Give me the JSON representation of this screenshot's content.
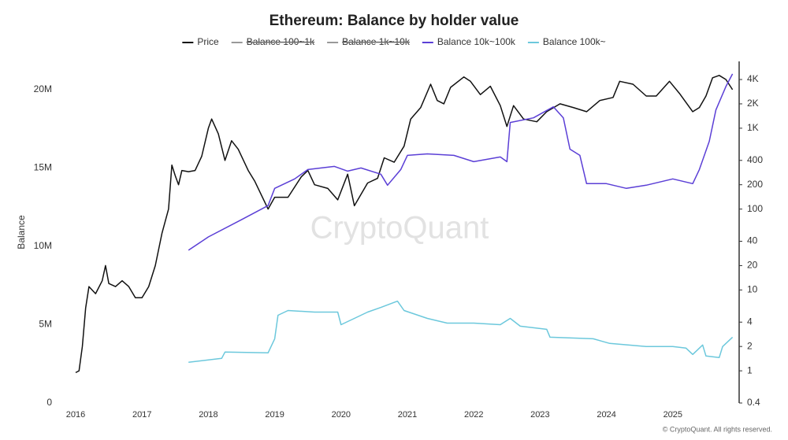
{
  "chart_data": {
    "type": "line",
    "title": "Ethereum: Balance by holder value",
    "ylabel": "Balance",
    "watermark": "CryptoQuant",
    "source": "© CryptoQuant. All rights reserved.",
    "xlim": [
      2015.75,
      2026.0
    ],
    "xticks": [
      2016,
      2017,
      2018,
      2019,
      2020,
      2021,
      2022,
      2023,
      2024,
      2025
    ],
    "ylim": [
      0,
      21800000
    ],
    "yticks": [
      {
        "value": 0,
        "label": "0"
      },
      {
        "value": 5000000,
        "label": "5M"
      },
      {
        "value": 10000000,
        "label": "10M"
      },
      {
        "value": 15000000,
        "label": "15M"
      },
      {
        "value": 20000000,
        "label": "20M"
      }
    ],
    "y2log": true,
    "y2lim": [
      0.4,
      6700
    ],
    "y2ticks": [
      {
        "value": 0.4,
        "label": "0.4"
      },
      1,
      2,
      4,
      10,
      20,
      40,
      100,
      200,
      400,
      {
        "value": 1000,
        "label": "1K"
      },
      {
        "value": 2000,
        "label": "2K"
      },
      {
        "value": 4000,
        "label": "4K"
      }
    ],
    "series": [
      {
        "name": "Price",
        "color": "#111111",
        "axis": "y2",
        "x": [
          2016.0,
          2016.05,
          2016.1,
          2016.15,
          2016.2,
          2016.3,
          2016.4,
          2016.45,
          2016.5,
          2016.6,
          2016.7,
          2016.8,
          2016.9,
          2017.0,
          2017.1,
          2017.2,
          2017.3,
          2017.4,
          2017.45,
          2017.5,
          2017.55,
          2017.6,
          2017.7,
          2017.8,
          2017.9,
          2018.0,
          2018.05,
          2018.15,
          2018.25,
          2018.35,
          2018.45,
          2018.6,
          2018.7,
          2018.9,
          2019.0,
          2019.2,
          2019.4,
          2019.5,
          2019.6,
          2019.8,
          2019.95,
          2020.1,
          2020.2,
          2020.4,
          2020.55,
          2020.65,
          2020.8,
          2020.95,
          2021.05,
          2021.2,
          2021.35,
          2021.45,
          2021.55,
          2021.65,
          2021.85,
          2021.95,
          2022.1,
          2022.25,
          2022.4,
          2022.5,
          2022.6,
          2022.75,
          2022.95,
          2023.1,
          2023.3,
          2023.5,
          2023.7,
          2023.9,
          2024.1,
          2024.2,
          2024.4,
          2024.6,
          2024.75,
          2024.95,
          2025.1,
          2025.3,
          2025.4,
          2025.5,
          2025.6,
          2025.7,
          2025.8,
          2025.9
        ],
        "values": [
          0.95,
          1.0,
          2,
          6,
          11,
          9,
          13,
          20,
          12,
          11,
          13,
          11,
          8,
          8,
          11,
          20,
          50,
          100,
          350,
          260,
          200,
          300,
          290,
          300,
          450,
          1000,
          1300,
          850,
          400,
          700,
          550,
          300,
          220,
          100,
          140,
          140,
          250,
          300,
          200,
          180,
          130,
          270,
          110,
          210,
          240,
          430,
          380,
          600,
          1300,
          1800,
          3500,
          2200,
          2000,
          3200,
          4300,
          3800,
          2600,
          3300,
          1900,
          1050,
          1900,
          1300,
          1200,
          1600,
          2000,
          1800,
          1600,
          2200,
          2400,
          3800,
          3500,
          2500,
          2500,
          3800,
          2700,
          1600,
          1800,
          2500,
          4200,
          4500,
          4000,
          3000
        ]
      },
      {
        "name": "Balance 100~1k",
        "color": "#999999",
        "hidden": true
      },
      {
        "name": "Balance 1k~10k",
        "color": "#999999",
        "hidden": true
      },
      {
        "name": "Balance 10k~100k",
        "color": "#5b3fd6",
        "x": [
          2017.7,
          2018.0,
          2018.5,
          2018.9,
          2019.0,
          2019.3,
          2019.5,
          2019.9,
          2020.1,
          2020.3,
          2020.6,
          2020.7,
          2020.9,
          2021.0,
          2021.3,
          2021.7,
          2022.0,
          2022.4,
          2022.5,
          2022.55,
          2022.9,
          2023.2,
          2023.35,
          2023.45,
          2023.6,
          2023.7,
          2024.0,
          2024.3,
          2024.6,
          2025.0,
          2025.3,
          2025.4,
          2025.55,
          2025.65,
          2025.8,
          2025.9
        ],
        "values": [
          9750000,
          10600000,
          11700000,
          12600000,
          13700000,
          14300000,
          14900000,
          15100000,
          14800000,
          15000000,
          14600000,
          13900000,
          14900000,
          15800000,
          15900000,
          15800000,
          15400000,
          15700000,
          15400000,
          17900000,
          18200000,
          18900000,
          18200000,
          16200000,
          15800000,
          14000000,
          14000000,
          13700000,
          13900000,
          14300000,
          14000000,
          14900000,
          16700000,
          18700000,
          20200000,
          21000000
        ]
      },
      {
        "name": "Balance 100k~",
        "color": "#6cc8dc",
        "x": [
          2017.7,
          2018.2,
          2018.25,
          2018.9,
          2019.0,
          2019.05,
          2019.2,
          2019.6,
          2019.95,
          2020.0,
          2020.2,
          2020.4,
          2020.6,
          2020.85,
          2020.95,
          2021.3,
          2021.6,
          2022.0,
          2022.4,
          2022.55,
          2022.7,
          2023.1,
          2023.15,
          2023.8,
          2024.05,
          2024.6,
          2025.0,
          2025.2,
          2025.3,
          2025.45,
          2025.5,
          2025.7,
          2025.75,
          2025.9
        ],
        "values": [
          2600000,
          2850000,
          3250000,
          3200000,
          4100000,
          5600000,
          5900000,
          5800000,
          5800000,
          5000000,
          5400000,
          5800000,
          6100000,
          6500000,
          5900000,
          5400000,
          5100000,
          5100000,
          5000000,
          5400000,
          4900000,
          4700000,
          4200000,
          4100000,
          3800000,
          3600000,
          3600000,
          3500000,
          3100000,
          3700000,
          3000000,
          2900000,
          3600000,
          4200000
        ]
      }
    ]
  }
}
